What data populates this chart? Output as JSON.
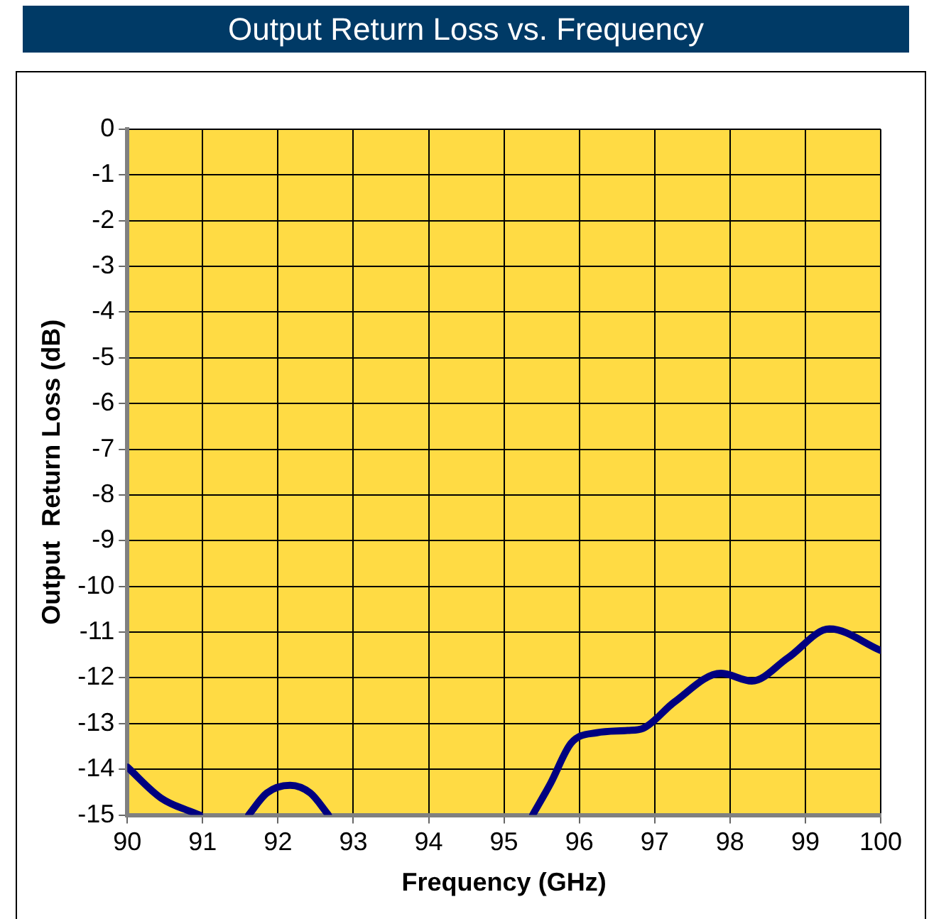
{
  "chart_data": {
    "type": "line",
    "title": "Output Return Loss vs. Frequency",
    "xlabel": "Frequency (GHz)",
    "ylabel": "Output  Return Loss (dB)",
    "series": [
      {
        "color": "#000080",
        "x": [
          90,
          90.45,
          90.96,
          91.3,
          91.61,
          91.85,
          92.16,
          92.43,
          92.67,
          95,
          95.38,
          95.62,
          95.89,
          96.23,
          96.64,
          96.85,
          97.26,
          97.88,
          98.29,
          98.77,
          99.32,
          100
        ],
        "values": [
          -13.95,
          -14.63,
          -15,
          null,
          -15,
          -14.52,
          -14.35,
          -14.52,
          -15,
          null,
          -15,
          -14.3,
          -13.43,
          -13.2,
          -13.15,
          -13.1,
          -12.53,
          -11.9,
          -12.07,
          -11.56,
          -10.93,
          -11.4
        ]
      }
    ],
    "xlim": [
      90,
      100
    ],
    "xticks": [
      90,
      91,
      92,
      93,
      94,
      95,
      96,
      97,
      98,
      99,
      100
    ],
    "ylim": [
      -15,
      0
    ],
    "yticks": [
      0,
      -1,
      -2,
      -3,
      -4,
      -5,
      -6,
      -7,
      -8,
      -9,
      -10,
      -11,
      -12,
      -13,
      -14,
      -15
    ],
    "grid": true,
    "marker": "none",
    "line_style": "solid",
    "legend": false
  }
}
